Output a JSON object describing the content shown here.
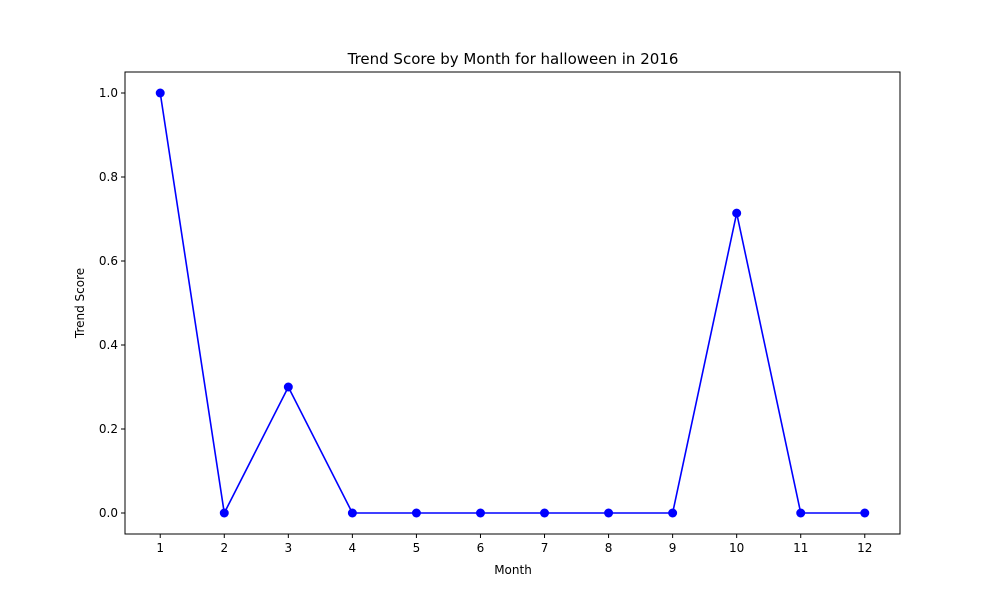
{
  "chart_data": {
    "type": "line",
    "title": "Trend Score by Month for halloween in 2016",
    "xlabel": "Month",
    "ylabel": "Trend Score",
    "x": [
      1,
      2,
      3,
      4,
      5,
      6,
      7,
      8,
      9,
      10,
      11,
      12
    ],
    "series": [
      {
        "values": [
          1.0,
          0.0,
          0.3,
          0.0,
          0.0,
          0.0,
          0.0,
          0.0,
          0.0,
          0.714,
          0.0,
          0.0
        ],
        "color": "#0000ff",
        "marker": "circle"
      }
    ],
    "xticks": [
      "1",
      "2",
      "3",
      "4",
      "5",
      "6",
      "7",
      "8",
      "9",
      "10",
      "11",
      "12"
    ],
    "yticks": [
      "0.0",
      "0.2",
      "0.4",
      "0.6",
      "0.8",
      "1.0"
    ],
    "ytick_values": [
      0.0,
      0.2,
      0.4,
      0.6,
      0.8,
      1.0
    ],
    "xlim": [
      0.45,
      12.55
    ],
    "ylim": [
      -0.05,
      1.05
    ],
    "grid": false,
    "legend": false
  }
}
